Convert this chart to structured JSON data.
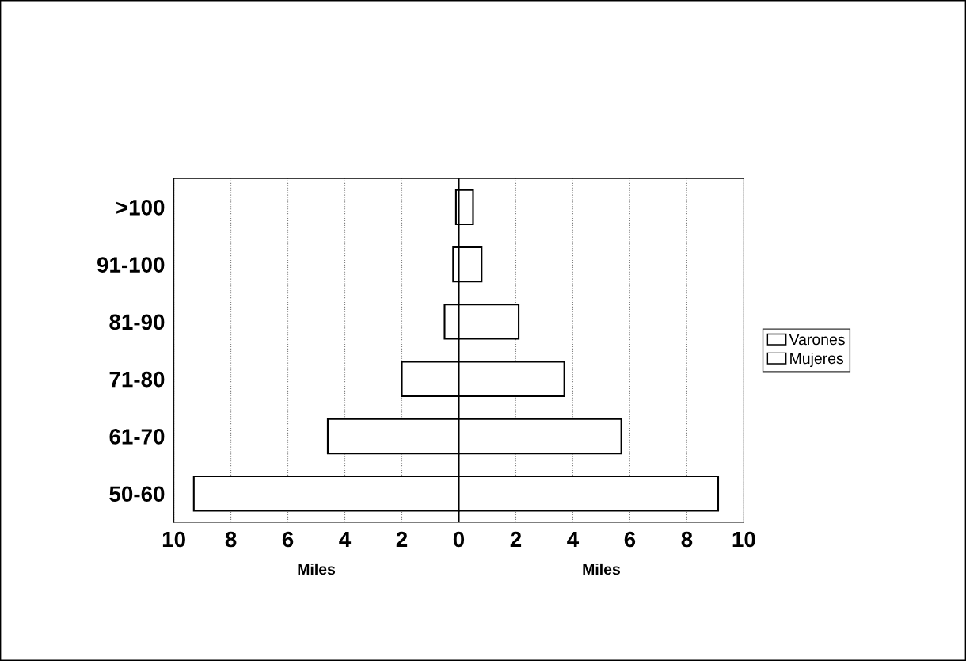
{
  "chart_data": {
    "type": "bar",
    "orientation": "horizontal",
    "stacked": true,
    "categories": [
      ">100",
      "91-100",
      "81-90",
      "71-80",
      "61-70",
      "50-60"
    ],
    "series": [
      {
        "name": "Varones",
        "color": "#ffffff",
        "values": [
          -0.1,
          -0.2,
          -0.5,
          -2.0,
          -4.6,
          -9.3
        ]
      },
      {
        "name": "Mujeres",
        "color": "#ffffff",
        "values": [
          0.5,
          0.8,
          2.1,
          3.7,
          5.7,
          9.1
        ]
      }
    ],
    "xlim": [
      -10,
      10
    ],
    "xticks": [
      {
        "value": -10,
        "label": "10"
      },
      {
        "value": -8,
        "label": "8"
      },
      {
        "value": -6,
        "label": "6"
      },
      {
        "value": -4,
        "label": "4"
      },
      {
        "value": -2,
        "label": "2"
      },
      0,
      2,
      4,
      6,
      8,
      10
    ],
    "xlabel": "Miles",
    "annotations": [
      "Miles"
    ],
    "grid": "x",
    "legend": "right"
  }
}
